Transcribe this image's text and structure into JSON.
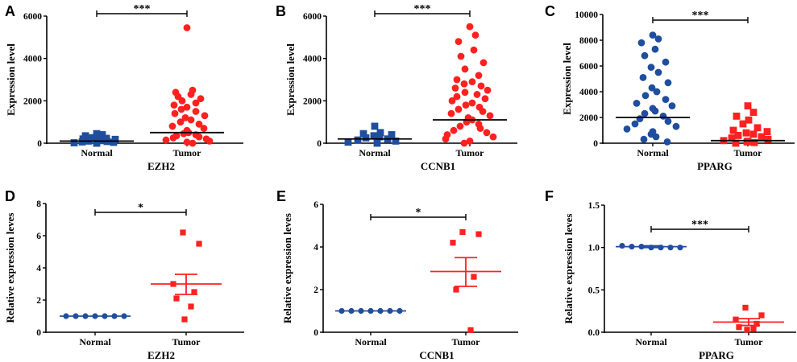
{
  "chart_data": [
    {
      "type": "scatter",
      "panel_label": "A",
      "title": "",
      "xlabel": "EZH2",
      "ylabel": "Expression level",
      "categories": [
        "Normal",
        "Tumor"
      ],
      "ylim": [
        0,
        6000
      ],
      "yticks": [
        0,
        2000,
        4000,
        6000
      ],
      "significance": "***",
      "markers": [
        "square",
        "circle"
      ],
      "colors": [
        "#1f4e9e",
        "#ff2020"
      ],
      "series": [
        {
          "name": "Normal",
          "mean": 100,
          "values": [
            0,
            20,
            40,
            60,
            80,
            100,
            120,
            150,
            180,
            200,
            230,
            260,
            300,
            350,
            400,
            450
          ]
        },
        {
          "name": "Tumor",
          "mean": 500,
          "values": [
            0,
            50,
            100,
            150,
            200,
            250,
            300,
            350,
            400,
            450,
            500,
            600,
            700,
            800,
            900,
            1000,
            1100,
            1200,
            1300,
            1400,
            1500,
            1600,
            1700,
            1800,
            1900,
            2000,
            2100,
            2200,
            2300,
            2400,
            2500,
            5450
          ]
        }
      ]
    },
    {
      "type": "scatter",
      "panel_label": "B",
      "title": "",
      "xlabel": "CCNB1",
      "ylabel": "Expression level",
      "categories": [
        "Normal",
        "Tumor"
      ],
      "ylim": [
        0,
        6000
      ],
      "yticks": [
        0,
        2000,
        4000,
        6000
      ],
      "significance": "***",
      "markers": [
        "square",
        "circle"
      ],
      "colors": [
        "#1f4e9e",
        "#ff2020"
      ],
      "series": [
        {
          "name": "Normal",
          "mean": 200,
          "values": [
            0,
            50,
            100,
            150,
            200,
            250,
            300,
            350,
            400,
            450,
            500,
            800
          ]
        },
        {
          "name": "Tumor",
          "mean": 1100,
          "values": [
            0,
            100,
            200,
            300,
            400,
            500,
            600,
            700,
            800,
            900,
            1000,
            1100,
            1200,
            1300,
            1400,
            1500,
            1600,
            1700,
            1800,
            1900,
            2000,
            2100,
            2200,
            2300,
            2400,
            2500,
            2600,
            2700,
            2800,
            2900,
            3000,
            3200,
            3500,
            3800,
            4100,
            4400,
            4800,
            5100,
            5500
          ]
        }
      ]
    },
    {
      "type": "scatter",
      "panel_label": "C",
      "title": "",
      "xlabel": "PPARG",
      "ylabel": "Expression level",
      "categories": [
        "Normal",
        "Tumor"
      ],
      "ylim": [
        0,
        10000
      ],
      "yticks": [
        0,
        2000,
        4000,
        6000,
        8000,
        10000
      ],
      "significance": "***",
      "markers": [
        "circle",
        "square"
      ],
      "colors": [
        "#1f4e9e",
        "#ff2020"
      ],
      "series": [
        {
          "name": "Normal",
          "mean": 2000,
          "values": [
            100,
            300,
            500,
            700,
            900,
            1100,
            1300,
            1500,
            1700,
            1900,
            2100,
            2300,
            2500,
            2700,
            2900,
            3100,
            3400,
            3700,
            4000,
            4300,
            4700,
            5100,
            5500,
            5900,
            6300,
            6800,
            7300,
            7800,
            8100,
            8400
          ]
        },
        {
          "name": "Tumor",
          "mean": 200,
          "values": [
            0,
            50,
            100,
            150,
            200,
            300,
            400,
            500,
            600,
            700,
            800,
            900,
            1000,
            1200,
            1500,
            1800,
            2100,
            2400,
            2900
          ]
        }
      ]
    },
    {
      "type": "scatter",
      "panel_label": "D",
      "title": "",
      "xlabel": "EZH2",
      "ylabel": "Relative expression leves",
      "categories": [
        "Normal",
        "Tumor"
      ],
      "ylim": [
        0,
        8
      ],
      "yticks": [
        0,
        2,
        4,
        6,
        8
      ],
      "significance": "*",
      "markers": [
        "circle",
        "square"
      ],
      "colors": [
        "#1f4e9e",
        "#ff2020"
      ],
      "series": [
        {
          "name": "Normal",
          "mean": 1.0,
          "sem_low": 1.0,
          "sem_high": 1.0,
          "values": [
            1,
            1,
            1,
            1,
            1,
            1,
            1
          ]
        },
        {
          "name": "Tumor",
          "mean": 3.0,
          "sem_low": 2.35,
          "sem_high": 3.6,
          "values": [
            6.2,
            5.5,
            3.0,
            2.5,
            2.1,
            1.6,
            0.8
          ]
        }
      ]
    },
    {
      "type": "scatter",
      "panel_label": "E",
      "title": "",
      "xlabel": "CCNB1",
      "ylabel": "Relative expression leves",
      "categories": [
        "Normal",
        "Tumor"
      ],
      "ylim": [
        0,
        6
      ],
      "yticks": [
        0,
        2,
        4,
        6
      ],
      "significance": "*",
      "markers": [
        "circle",
        "square"
      ],
      "colors": [
        "#1f4e9e",
        "#ff2020"
      ],
      "series": [
        {
          "name": "Normal",
          "mean": 1.0,
          "sem_low": 1.0,
          "sem_high": 1.0,
          "values": [
            1,
            1,
            1,
            1,
            1,
            1,
            1
          ]
        },
        {
          "name": "Tumor",
          "mean": 2.85,
          "sem_low": 2.15,
          "sem_high": 3.5,
          "values": [
            4.7,
            4.6,
            4.2,
            2.6,
            2.0,
            0.1
          ]
        }
      ]
    },
    {
      "type": "scatter",
      "panel_label": "F",
      "title": "",
      "xlabel": "PPARG",
      "ylabel": "Relative expression leves",
      "categories": [
        "Normal",
        "Tumor"
      ],
      "ylim": [
        0,
        1.5
      ],
      "yticks": [
        0.0,
        0.5,
        1.0,
        1.5
      ],
      "tick_decimals": 1,
      "significance": "***",
      "markers": [
        "circle",
        "square"
      ],
      "colors": [
        "#1f4e9e",
        "#ff2020"
      ],
      "series": [
        {
          "name": "Normal",
          "mean": 1.01,
          "sem_low": 1.0,
          "sem_high": 1.02,
          "values": [
            1.02,
            1.01,
            1.01,
            1.0,
            1.0,
            1.0,
            1.0
          ]
        },
        {
          "name": "Tumor",
          "mean": 0.12,
          "sem_low": 0.08,
          "sem_high": 0.16,
          "values": [
            0.29,
            0.2,
            0.15,
            0.1,
            0.06,
            0.04,
            0.03
          ]
        }
      ]
    }
  ]
}
